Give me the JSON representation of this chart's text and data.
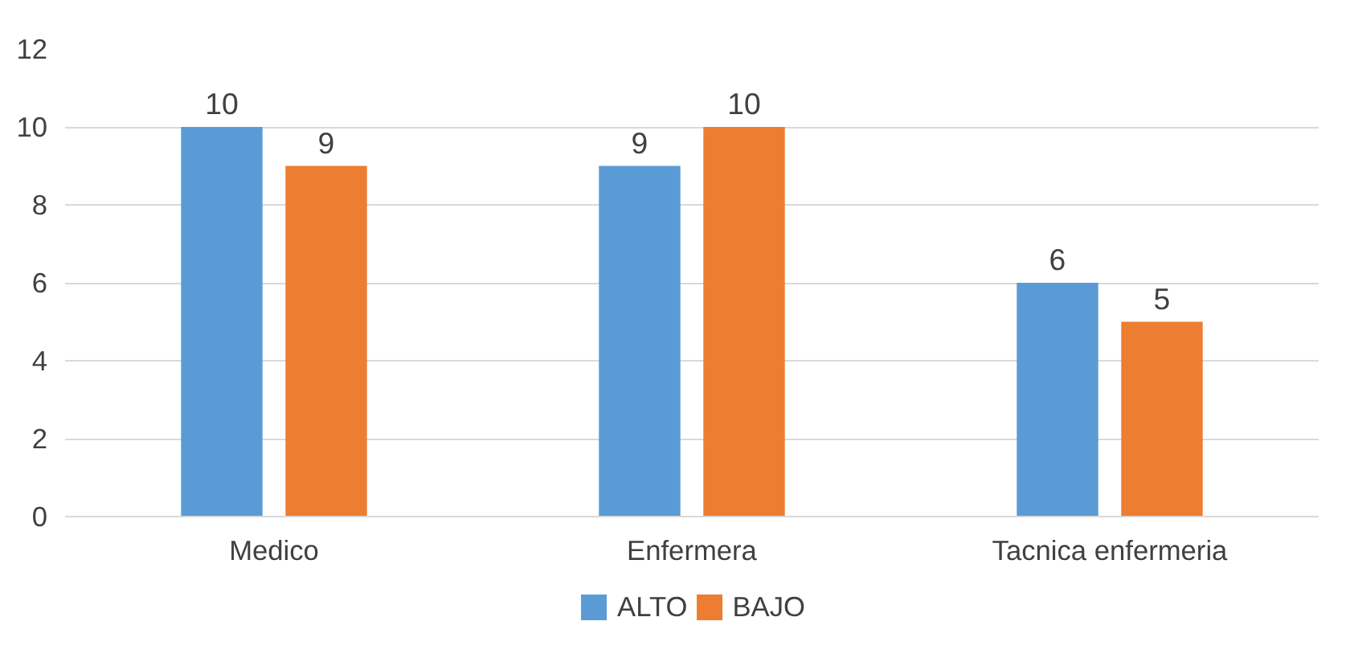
{
  "chart_data": {
    "type": "bar",
    "categories": [
      "Medico",
      "Enfermera",
      "Tacnica enfermeria"
    ],
    "series": [
      {
        "name": "ALTO",
        "color": "#5b9bd5",
        "values": [
          10,
          9,
          6
        ]
      },
      {
        "name": "BAJO",
        "color": "#ed7d31",
        "values": [
          9,
          10,
          5
        ]
      }
    ],
    "ylim": [
      0,
      12
    ],
    "yticks": [
      0,
      2,
      4,
      6,
      8,
      10,
      12
    ],
    "grid": "y",
    "legend": "bottom",
    "data_labels": true
  }
}
